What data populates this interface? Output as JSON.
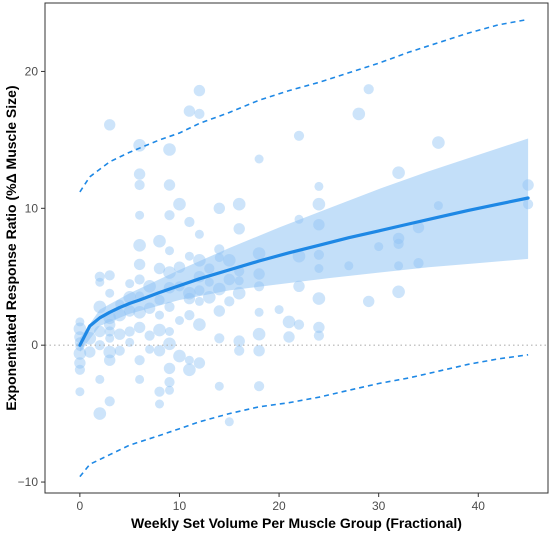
{
  "chart_data": {
    "type": "scatter",
    "xlabel": "Weekly Set Volume Per Muscle Group (Fractional)",
    "ylabel": "Exponentiated Response Ratio (%Δ Muscle Size)",
    "xlim": [
      -3.5,
      47
    ],
    "ylim": [
      -10.8,
      25
    ],
    "xticks": [
      0,
      10,
      20,
      30,
      40
    ],
    "yticks": [
      -10,
      0,
      10,
      20
    ],
    "grid": false,
    "reference_line": {
      "y": 0,
      "style": "dotted"
    },
    "colors": {
      "points": "#90c4f4",
      "fit": "#1e88e5",
      "band": "#b9d9f8",
      "prediction": "#1e88e5"
    },
    "fit": {
      "x": [
        0,
        1,
        2,
        3,
        4,
        5,
        6,
        8,
        10,
        12,
        15,
        18,
        21,
        24,
        27,
        30,
        33,
        36,
        39,
        42,
        45
      ],
      "y": [
        0,
        1.4,
        2.0,
        2.4,
        2.75,
        3.05,
        3.3,
        3.85,
        4.35,
        4.85,
        5.5,
        6.15,
        6.75,
        7.3,
        7.85,
        8.35,
        8.85,
        9.35,
        9.85,
        10.3,
        10.75
      ]
    },
    "confidence_band": {
      "x": [
        0,
        2,
        5,
        10,
        15,
        20,
        25,
        30,
        35,
        40,
        45
      ],
      "lower": [
        -0.5,
        1.4,
        2.3,
        3.3,
        4.0,
        4.45,
        4.9,
        5.3,
        5.7,
        6.0,
        6.3
      ],
      "upper": [
        0.5,
        2.6,
        3.8,
        5.5,
        7.1,
        8.6,
        10.0,
        11.4,
        12.7,
        13.9,
        15.1
      ]
    },
    "prediction_interval": {
      "x": [
        0,
        1,
        3,
        5,
        8,
        10,
        12,
        15,
        18,
        21,
        24,
        27,
        30,
        33,
        36,
        39,
        42,
        45
      ],
      "upper": [
        11.2,
        12.3,
        13.4,
        14.1,
        15.0,
        15.5,
        16.2,
        17.0,
        17.9,
        18.6,
        19.2,
        19.9,
        20.6,
        21.4,
        22.1,
        22.8,
        23.4,
        23.8
      ],
      "lower": [
        -9.6,
        -8.7,
        -8.0,
        -7.3,
        -6.6,
        -6.1,
        -5.6,
        -5.0,
        -4.5,
        -4.2,
        -3.8,
        -3.3,
        -2.8,
        -2.4,
        -1.9,
        -1.4,
        -1.0,
        -0.7
      ]
    },
    "points": [
      [
        0,
        1.7
      ],
      [
        0,
        1.2
      ],
      [
        0,
        0.6
      ],
      [
        0,
        0.2
      ],
      [
        0,
        -0.1
      ],
      [
        0,
        -0.6
      ],
      [
        0,
        -1.3
      ],
      [
        0,
        -1.8
      ],
      [
        0,
        -3.4
      ],
      [
        1,
        0.5
      ],
      [
        1,
        -0.5
      ],
      [
        2,
        5.0
      ],
      [
        2,
        4.6
      ],
      [
        2,
        2.8
      ],
      [
        2,
        1.0
      ],
      [
        2,
        0.0
      ],
      [
        2,
        -2.5
      ],
      [
        2,
        -5.0
      ],
      [
        3,
        16.1
      ],
      [
        3,
        5.1
      ],
      [
        3,
        3.8
      ],
      [
        3,
        2.0
      ],
      [
        3,
        1.5
      ],
      [
        3,
        1.0
      ],
      [
        3,
        0.5
      ],
      [
        3,
        -0.5
      ],
      [
        3,
        -1.1
      ],
      [
        3,
        -4.1
      ],
      [
        4,
        3.0
      ],
      [
        4,
        2.2
      ],
      [
        4,
        0.8
      ],
      [
        4,
        -0.4
      ],
      [
        5,
        4.5
      ],
      [
        5,
        3.5
      ],
      [
        5,
        2.5
      ],
      [
        5,
        1.0
      ],
      [
        5,
        0.2
      ],
      [
        6,
        14.6
      ],
      [
        6,
        12.5
      ],
      [
        6,
        11.7
      ],
      [
        6,
        9.5
      ],
      [
        6,
        7.3
      ],
      [
        6,
        5.9
      ],
      [
        6,
        4.8
      ],
      [
        6,
        3.6
      ],
      [
        6,
        2.4
      ],
      [
        6,
        1.3
      ],
      [
        6,
        -1.1
      ],
      [
        6,
        -2.5
      ],
      [
        7,
        4.3
      ],
      [
        7,
        2.7
      ],
      [
        7,
        0.7
      ],
      [
        7,
        -0.3
      ],
      [
        8,
        7.6
      ],
      [
        8,
        5.6
      ],
      [
        8,
        3.3
      ],
      [
        8,
        2.2
      ],
      [
        8,
        1.1
      ],
      [
        8,
        -0.4
      ],
      [
        8,
        -3.4
      ],
      [
        8,
        -4.3
      ],
      [
        9,
        14.3
      ],
      [
        9,
        11.7
      ],
      [
        9,
        9.5
      ],
      [
        9,
        6.9
      ],
      [
        9,
        5.3
      ],
      [
        9,
        4.2
      ],
      [
        9,
        2.8
      ],
      [
        9,
        1.0
      ],
      [
        9,
        0.1
      ],
      [
        9,
        -1.7
      ],
      [
        9,
        -2.7
      ],
      [
        9,
        -3.3
      ],
      [
        10,
        10.3
      ],
      [
        10,
        5.7
      ],
      [
        10,
        4.3
      ],
      [
        10,
        1.8
      ],
      [
        10,
        -0.8
      ],
      [
        11,
        17.1
      ],
      [
        11,
        9.0
      ],
      [
        11,
        6.5
      ],
      [
        11,
        3.8
      ],
      [
        11,
        3.4
      ],
      [
        11,
        2.2
      ],
      [
        11,
        -1.1
      ],
      [
        11,
        -1.8
      ],
      [
        12,
        18.6
      ],
      [
        12,
        16.9
      ],
      [
        12,
        8.1
      ],
      [
        12,
        6.2
      ],
      [
        12,
        5.0
      ],
      [
        12,
        4.0
      ],
      [
        12,
        3.2
      ],
      [
        12,
        1.5
      ],
      [
        12,
        -1.3
      ],
      [
        13,
        5.6
      ],
      [
        13,
        4.6
      ],
      [
        13,
        3.5
      ],
      [
        14,
        10.0
      ],
      [
        14,
        7.0
      ],
      [
        14,
        6.4
      ],
      [
        14,
        4.1
      ],
      [
        14,
        2.5
      ],
      [
        14,
        0.5
      ],
      [
        14,
        -3.0
      ],
      [
        15,
        6.2
      ],
      [
        15,
        4.8
      ],
      [
        15,
        3.2
      ],
      [
        15,
        -5.6
      ],
      [
        16,
        10.3
      ],
      [
        16,
        8.5
      ],
      [
        16,
        5.4
      ],
      [
        16,
        4.7
      ],
      [
        16,
        3.8
      ],
      [
        16,
        0.3
      ],
      [
        16,
        -0.4
      ],
      [
        18,
        13.6
      ],
      [
        18,
        6.7
      ],
      [
        18,
        5.2
      ],
      [
        18,
        4.3
      ],
      [
        18,
        2.4
      ],
      [
        18,
        0.8
      ],
      [
        18,
        -0.4
      ],
      [
        18,
        -3.0
      ],
      [
        20,
        2.6
      ],
      [
        21,
        1.7
      ],
      [
        21,
        0.6
      ],
      [
        22,
        15.3
      ],
      [
        22,
        9.2
      ],
      [
        22,
        6.5
      ],
      [
        22,
        4.3
      ],
      [
        22,
        1.5
      ],
      [
        24,
        11.6
      ],
      [
        24,
        10.3
      ],
      [
        24,
        8.8
      ],
      [
        24,
        6.6
      ],
      [
        24,
        5.6
      ],
      [
        24,
        3.4
      ],
      [
        24,
        1.3
      ],
      [
        24,
        0.7
      ],
      [
        27,
        5.8
      ],
      [
        28,
        16.9
      ],
      [
        29,
        3.2
      ],
      [
        29,
        18.7
      ],
      [
        30,
        7.2
      ],
      [
        32,
        12.6
      ],
      [
        32,
        7.8
      ],
      [
        32,
        7.4
      ],
      [
        32,
        5.8
      ],
      [
        32,
        3.9
      ],
      [
        34,
        8.6
      ],
      [
        34,
        6.0
      ],
      [
        36,
        10.2
      ],
      [
        36,
        14.8
      ],
      [
        45,
        11.7
      ],
      [
        45,
        10.3
      ]
    ]
  }
}
